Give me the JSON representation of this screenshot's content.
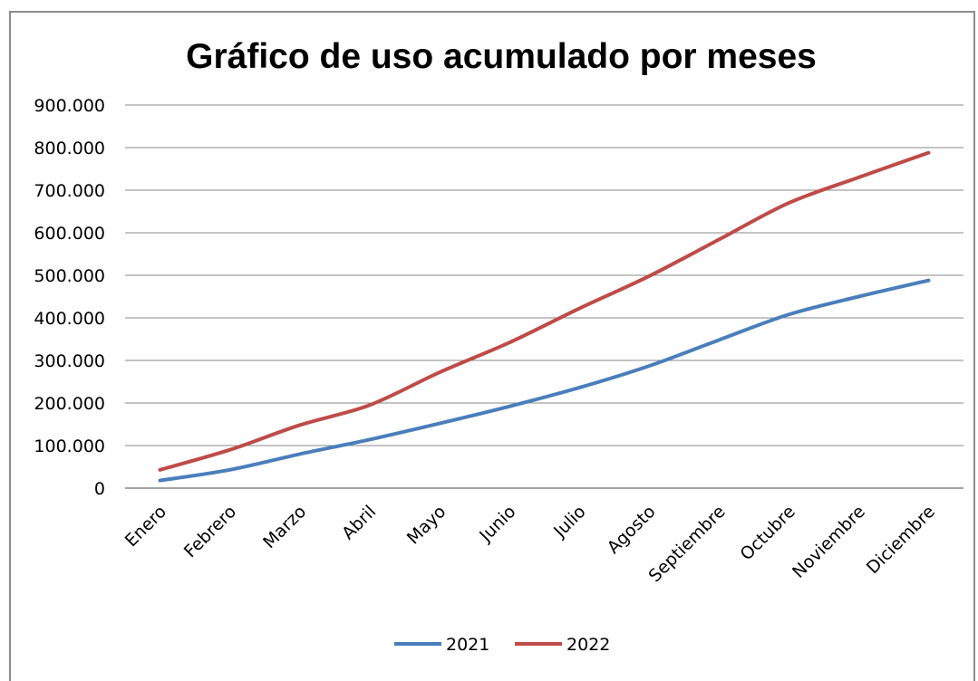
{
  "chart_data": {
    "type": "line",
    "title": "Gráfico de uso acumulado por meses",
    "xlabel": "",
    "ylabel": "",
    "categories": [
      "Enero",
      "Febrero",
      "Marzo",
      "Abril",
      "Mayo",
      "Junio",
      "Julio",
      "Agosto",
      "Septiembre",
      "Octubre",
      "Noviembre",
      "Diciembre"
    ],
    "ylim": [
      0,
      900000
    ],
    "y_ticks": [
      0,
      100000,
      200000,
      300000,
      400000,
      500000,
      600000,
      700000,
      800000,
      900000
    ],
    "y_tick_labels": [
      "0",
      "100.000",
      "200.000",
      "300.000",
      "400.000",
      "500.000",
      "600.000",
      "700.000",
      "800.000",
      "900.000"
    ],
    "grid": "horizontal",
    "legend_position": "bottom",
    "series": [
      {
        "name": "2021",
        "color": "#4a7ebb",
        "values": [
          18000,
          43000,
          80000,
          114000,
          152000,
          192000,
          236000,
          287000,
          348000,
          408000,
          450000,
          488000
        ]
      },
      {
        "name": "2022",
        "color": "#be4b48",
        "values": [
          43000,
          90000,
          148000,
          195000,
          272000,
          342000,
          422000,
          498000,
          584000,
          670000,
          730000,
          788000
        ]
      }
    ]
  }
}
